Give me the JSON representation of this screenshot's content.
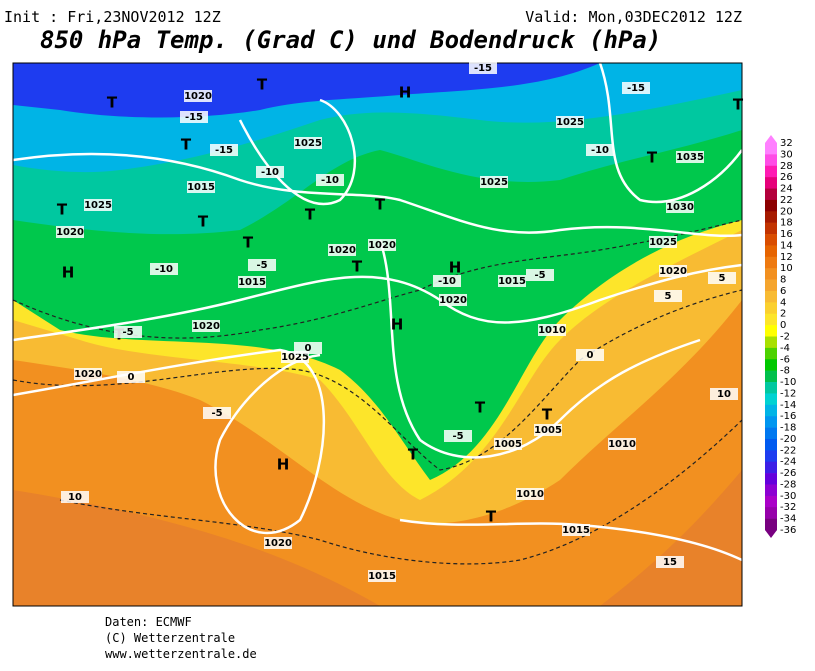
{
  "header": {
    "init": "Init : Fri,23NOV2012 12Z",
    "valid": "Valid: Mon,03DEC2012 12Z",
    "title": "850 hPa Temp. (Grad C) und Bodendruck (hPa)"
  },
  "legend": {
    "levels": [
      32,
      30,
      28,
      26,
      24,
      22,
      20,
      18,
      16,
      14,
      12,
      10,
      8,
      6,
      4,
      2,
      0,
      -2,
      -4,
      -6,
      -8,
      -10,
      -12,
      -14,
      -16,
      -18,
      -20,
      -22,
      -24,
      -26,
      -28,
      -30,
      -32,
      -34,
      -36
    ],
    "colors": [
      "#ff80ff",
      "#ff4de6",
      "#ff1ab3",
      "#e6007a",
      "#b3003c",
      "#8c0000",
      "#a61a00",
      "#c23300",
      "#d94d00",
      "#e66400",
      "#ee7a10",
      "#f29020",
      "#f5a52e",
      "#f8bb33",
      "#fbd02e",
      "#fde52a",
      "#ffff00",
      "#a8e000",
      "#4dd200",
      "#00c800",
      "#00c04c",
      "#00c8a0",
      "#00d2d2",
      "#00b4e6",
      "#0096f0",
      "#0078f0",
      "#005af0",
      "#1e3cf0",
      "#3c1ee6",
      "#6400dc",
      "#8c00d2",
      "#aa00c8",
      "#9600aa",
      "#780080"
    ]
  },
  "map_labels": [
    "T",
    "H",
    "T",
    "T",
    "T",
    "T",
    "H",
    "T",
    "H",
    "T",
    "H",
    "T",
    "T",
    "T",
    "T",
    "T",
    "H",
    "T",
    "T",
    "T",
    "T",
    "1020",
    "1020",
    "1025",
    "1015",
    "1025",
    "1025",
    "1015",
    "1020",
    "1020",
    "1020",
    "1025",
    "1030",
    "1035",
    "1025",
    "1020",
    "1015",
    "1010",
    "1020",
    "1005",
    "1005",
    "1010",
    "1015",
    "1010",
    "1025",
    "1020",
    "1015",
    "1020",
    "-15",
    "-15",
    "-10",
    "-10",
    "-15",
    "-10",
    "-5",
    "-5",
    "-10",
    "-5",
    "0",
    "0",
    "-5",
    "-5",
    "0",
    "5",
    "10",
    "5",
    "10",
    "15",
    "-10",
    "-15"
  ],
  "footer": {
    "source": "Daten: ECMWF",
    "copyright": "(C) Wetterzentrale",
    "url": "www.wetterzentrale.de"
  }
}
